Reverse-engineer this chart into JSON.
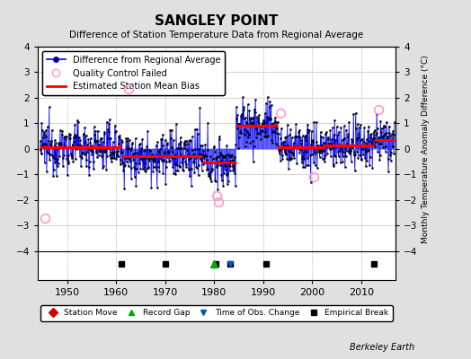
{
  "title": "SANGLEY POINT",
  "subtitle": "Difference of Station Temperature Data from Regional Average",
  "ylabel_right": "Monthly Temperature Anomaly Difference (°C)",
  "ylim": [
    -4,
    4
  ],
  "xlim": [
    1944,
    2017
  ],
  "yticks": [
    -4,
    -3,
    -2,
    -1,
    0,
    1,
    2,
    3,
    4
  ],
  "xticks": [
    1950,
    1960,
    1970,
    1980,
    1990,
    2000,
    2010
  ],
  "bg_color": "#e0e0e0",
  "plot_bg_color": "#ffffff",
  "grid_color": "#c0c0c0",
  "line_color": "#0000ff",
  "marker_color": "#000000",
  "bias_color": "#ff0000",
  "qc_color": "#ff99cc",
  "watermark": "Berkeley Earth",
  "segments": [
    {
      "x_start": 1944.5,
      "x_end": 1961.0,
      "bias": 0.07
    },
    {
      "x_start": 1961.0,
      "x_end": 1977.5,
      "bias": -0.28
    },
    {
      "x_start": 1977.5,
      "x_end": 1984.5,
      "bias": -0.52
    },
    {
      "x_start": 1984.5,
      "x_end": 1993.0,
      "bias": 0.92
    },
    {
      "x_start": 1993.0,
      "x_end": 2002.5,
      "bias": 0.07
    },
    {
      "x_start": 2002.5,
      "x_end": 2012.5,
      "bias": 0.12
    },
    {
      "x_start": 2012.5,
      "x_end": 2016.8,
      "bias": 0.35
    }
  ],
  "breaks": [
    1961.0,
    1970.0,
    1980.3,
    1983.3,
    1990.5,
    2012.5
  ],
  "record_gap": [
    1980.0
  ],
  "time_of_obs": [
    1983.3
  ],
  "station_move": [],
  "qc_fail_approx": [
    [
      1945.5,
      -2.7
    ],
    [
      1962.5,
      2.35
    ],
    [
      1980.5,
      -1.85
    ],
    [
      1980.8,
      -2.1
    ],
    [
      1993.5,
      1.4
    ],
    [
      2000.2,
      -1.1
    ],
    [
      2013.5,
      1.55
    ]
  ],
  "noise_std": 0.48
}
